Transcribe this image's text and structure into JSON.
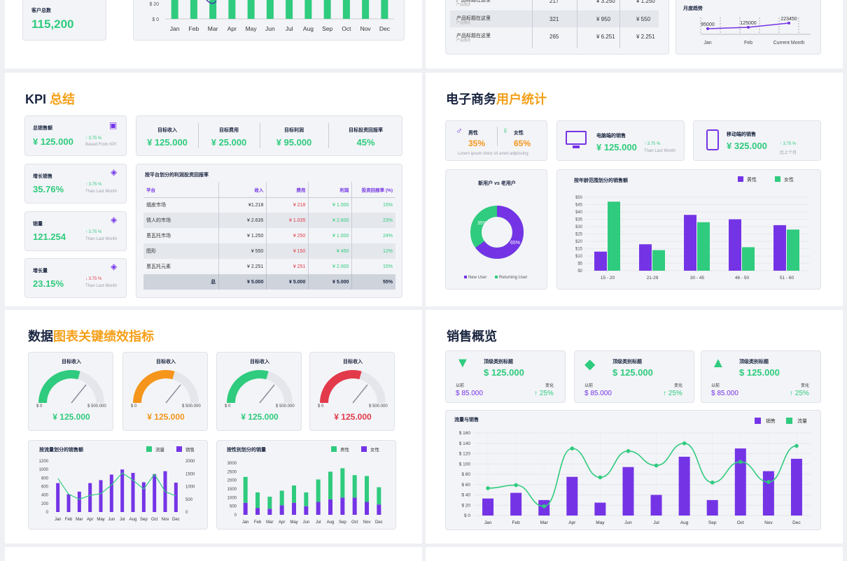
{
  "top": {
    "customer_label": "客户总数",
    "customer_value": "115,200",
    "mini_bar": {
      "months": [
        "Jan",
        "Feb",
        "Mar",
        "Apr",
        "May",
        "Jun",
        "Jul",
        "Aug",
        "Sep",
        "Oct",
        "Nov",
        "Dec"
      ],
      "yticks": [
        "$ 20",
        "$ 0"
      ]
    },
    "product_rows": [
      {
        "name": "产品标题在这里",
        "sub": "产品描述",
        "qty": "217",
        "v1": "¥ 3.250",
        "v2": "¥ 1.250"
      },
      {
        "name": "产品标题在这里",
        "sub": "产品描述",
        "qty": "321",
        "v1": "¥ 950",
        "v2": "¥ 550"
      },
      {
        "name": "产品标题在这里",
        "sub": "产品描述",
        "qty": "265",
        "v1": "¥ 6.251",
        "v2": "¥ 2.251"
      }
    ],
    "monthly": {
      "title": "月度趋势",
      "values": [
        "95000",
        "125000",
        "223450"
      ],
      "labels": [
        "Jan",
        "Feb",
        "Current Month"
      ]
    }
  },
  "kpi": {
    "title_a": "KPI ",
    "title_b": "总结",
    "total_sales": {
      "label": "总销售额",
      "value": "¥ 125.000",
      "pct": "3.75 %",
      "sub": "Based From KPI"
    },
    "side": [
      {
        "label": "增长销售",
        "value": "35.76%",
        "pct": "3.75 %",
        "sub": "Than Last Month",
        "up": true
      },
      {
        "label": "销量",
        "value": "121.254",
        "pct": "3.75 %",
        "sub": "Than Last Month",
        "up": true
      },
      {
        "label": "增长量",
        "value": "23.15%",
        "pct": "3.75 %",
        "sub": "Than Last Month",
        "up": false
      }
    ],
    "targets": [
      {
        "label": "目标收入",
        "value": "¥ 125.000"
      },
      {
        "label": "目标费用",
        "value": "¥ 25.000"
      },
      {
        "label": "目标利润",
        "value": "¥ 95.000"
      },
      {
        "label": "目标投资回报率",
        "value": "45%"
      }
    ],
    "table": {
      "title": "按平台划分的利润投资回报率",
      "headers": [
        "平台",
        "收入",
        "费用",
        "利润",
        "投资回报率 (%)"
      ],
      "rows": [
        [
          "烟皮市场",
          "¥1.218",
          "¥ 218",
          "¥ 1.000",
          "15%"
        ],
        [
          "情人的市场",
          "¥ 2.635",
          "¥ 1.035",
          "¥ 2.600",
          "23%"
        ],
        [
          "恩瓦托市场",
          "¥ 1.250",
          "¥ 250",
          "¥ 1.000",
          "24%"
        ],
        [
          "图形",
          "¥ 550",
          "¥ 150",
          "¥ 450",
          "12%"
        ],
        [
          "恩瓦托元素",
          "¥ 2.251",
          "¥ 251",
          "¥ 2.000",
          "15%"
        ]
      ],
      "total": [
        "总",
        "¥ 5.000",
        "¥ 5.000",
        "¥ 5.000",
        "55%"
      ]
    }
  },
  "ecom": {
    "title_a": "电子商务",
    "title_b": "用户统计",
    "male_label": "男性",
    "male_pct": "35%",
    "female_label": "女性",
    "female_pct": "65%",
    "gender_sub": "Lorem ipsum dolor sit amet adipiscing",
    "desktop": {
      "label": "电脑端的销售",
      "value": "¥ 125.000",
      "pct": "3.75 %",
      "sub": "Than Last Month"
    },
    "mobile": {
      "label": "移动端的销售",
      "value": "¥ 325.000",
      "pct": "3.75 %",
      "sub": "比上个月"
    },
    "donut": {
      "title": "新用户 vs 老用户",
      "new_pct": "35%",
      "ret_pct": "65%",
      "legend_new": "New User",
      "legend_ret": "Returning User"
    },
    "age_chart": {
      "title": "按年龄范围划分的销售额",
      "legend_male": "男性",
      "legend_female": "女性",
      "yticks": [
        "$50",
        "$45",
        "$40",
        "$35",
        "$30",
        "$25",
        "$20",
        "$15",
        "$10",
        "$5",
        "$0"
      ]
    }
  },
  "datakpi": {
    "title_a": "数据",
    "title_b": "图表关键绩效指标",
    "gauges": [
      {
        "label": "目标收入",
        "value": "¥ 125.000",
        "min": "$ 0",
        "max": "$ 500.000",
        "color": "#2fcb7e"
      },
      {
        "label": "目标收入",
        "value": "¥ 125.000",
        "min": "$ 0",
        "max": "$ 500.000",
        "color": "#f5951b"
      },
      {
        "label": "目标收入",
        "value": "¥ 125.000",
        "min": "$ 0",
        "max": "$ 500.000",
        "color": "#2fcb7e"
      },
      {
        "label": "目标收入",
        "value": "¥ 125.000",
        "min": "$ 0",
        "max": "$ 500.000",
        "color": "#e23a4a"
      }
    ],
    "traffic_chart": {
      "title": "按流量划分的销售额",
      "legend_a": "流量",
      "legend_b": "销售",
      "yleft": [
        "1200",
        "1000",
        "800",
        "600",
        "400",
        "200",
        "0"
      ],
      "yright": [
        "2000",
        "1500",
        "1000",
        "500",
        "0"
      ]
    },
    "gender_chart": {
      "title": "按性别划分的销量",
      "legend_a": "男性",
      "legend_b": "女性",
      "yticks": [
        "3000",
        "2500",
        "2000",
        "1500",
        "1000",
        "500",
        "0"
      ]
    }
  },
  "overview": {
    "title": "销售概览",
    "cards": [
      {
        "title": "顶级类别标题",
        "value": "$ 125.000",
        "prev_label": "以前",
        "prev": "$ 85.000",
        "chg_label": "变化",
        "chg": "25%"
      },
      {
        "title": "顶级类别标题",
        "value": "$ 125.000",
        "prev_label": "以前",
        "prev": "$ 85.000",
        "chg_label": "变化",
        "chg": "25%"
      },
      {
        "title": "顶级类别标题",
        "value": "$ 125.000",
        "prev_label": "以前",
        "prev": "$ 85.000",
        "chg_label": "变化",
        "chg": "25%"
      }
    ],
    "flow_chart": {
      "title": "流量与销售",
      "legend_a": "销售",
      "legend_b": "流量",
      "yticks": [
        "$ 160",
        "$ 140",
        "$ 120",
        "$ 100",
        "$ 80",
        "$ 60",
        "$ 40",
        "$ 20",
        "$ 0"
      ]
    }
  },
  "colors": {
    "green": "#2fcb7e",
    "purple": "#7434e6",
    "orange": "#f5951b",
    "red": "#e23a4a",
    "navy": "#1a2540"
  },
  "chart_data": [
    {
      "type": "bar",
      "title": "",
      "categories": [
        "Jan",
        "Feb",
        "Mar",
        "Apr",
        "May",
        "Jun",
        "Jul",
        "Aug",
        "Sep",
        "Oct",
        "Nov",
        "Dec"
      ],
      "values": [
        26,
        26,
        26,
        26,
        22,
        26,
        26,
        26,
        26,
        26,
        26,
        26
      ],
      "ylim": [
        0,
        26
      ]
    },
    {
      "type": "line",
      "title": "月度趋势",
      "categories": [
        "Jan",
        "Feb",
        "Current Month"
      ],
      "values": [
        95000,
        125000,
        223450
      ]
    },
    {
      "type": "pie",
      "title": "新用户 vs 老用户",
      "categories": [
        "New User",
        "Returning User"
      ],
      "values": [
        35,
        65
      ]
    },
    {
      "type": "bar",
      "title": "按年龄范围划分的销售额",
      "categories": [
        "15 - 20",
        "21-29",
        "30 - 45",
        "46 - 50",
        "51 - 60"
      ],
      "series": [
        {
          "name": "男性",
          "values": [
            13,
            18,
            38,
            35,
            31
          ]
        },
        {
          "name": "女性",
          "values": [
            47,
            14,
            33,
            16,
            28
          ]
        }
      ],
      "ylim": [
        0,
        50
      ]
    },
    {
      "type": "bar",
      "title": "按流量划分的销售额",
      "categories": [
        "Jan",
        "Feb",
        "Mar",
        "Apr",
        "May",
        "Jun",
        "Jul",
        "Aug",
        "Sep",
        "Oct",
        "Nov",
        "Dec"
      ],
      "series": [
        {
          "name": "销售",
          "values": [
            680,
            420,
            480,
            680,
            750,
            880,
            1000,
            920,
            700,
            890,
            960,
            690
          ]
        },
        {
          "name": "流量",
          "values": [
            1320,
            700,
            500,
            650,
            720,
            1060,
            1530,
            1250,
            900,
            1480,
            800,
            630
          ]
        }
      ]
    },
    {
      "type": "bar",
      "title": "按性别划分的销量",
      "categories": [
        "Jan",
        "Feb",
        "Mar",
        "Apr",
        "May",
        "Jun",
        "Jul",
        "Aug",
        "Sep",
        "Oct",
        "Nov",
        "Dec"
      ],
      "series": [
        {
          "name": "男性",
          "values": [
            700,
            400,
            350,
            550,
            700,
            500,
            750,
            900,
            1000,
            1000,
            750,
            600
          ]
        },
        {
          "name": "女性",
          "values": [
            1500,
            900,
            700,
            850,
            1000,
            800,
            1300,
            1600,
            1700,
            1300,
            1500,
            1000
          ]
        }
      ],
      "ylim": [
        0,
        3000
      ]
    },
    {
      "type": "bar",
      "title": "流量与销售",
      "categories": [
        "Jan",
        "Feb",
        "Mar",
        "Apr",
        "May",
        "Jun",
        "Jul",
        "Aug",
        "Sep",
        "Oct",
        "Nov",
        "Dec"
      ],
      "series": [
        {
          "name": "销售",
          "values": [
            33,
            44,
            30,
            75,
            25,
            94,
            40,
            114,
            30,
            130,
            86,
            110
          ]
        },
        {
          "name": "流量",
          "values": [
            53,
            59,
            18,
            130,
            74,
            125,
            97,
            140,
            64,
            104,
            65,
            135
          ]
        }
      ],
      "ylim": [
        0,
        160
      ]
    }
  ]
}
